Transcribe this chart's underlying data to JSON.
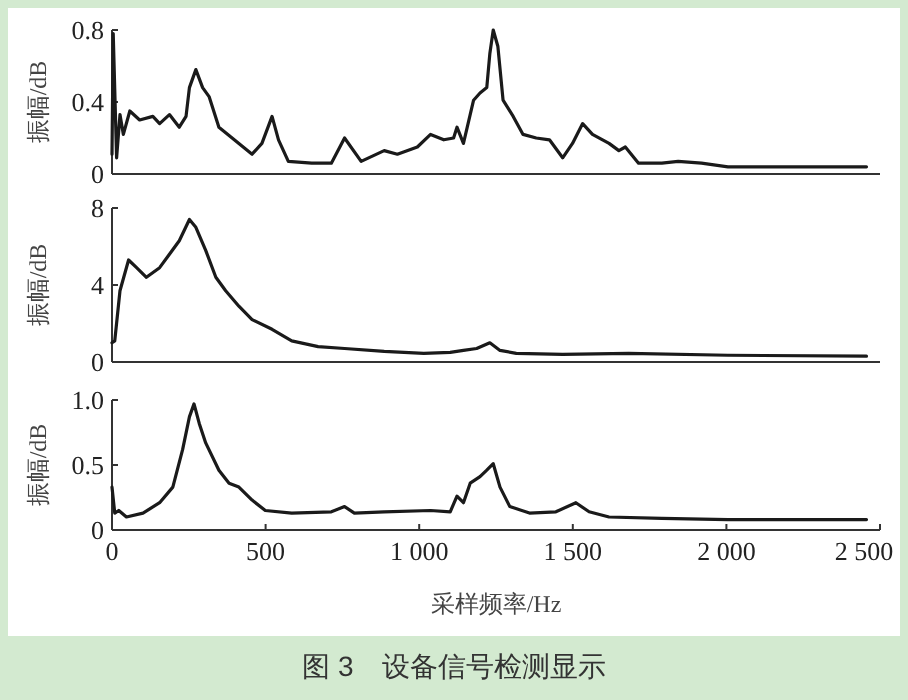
{
  "chart_data": [
    {
      "type": "line",
      "ylabel": "振幅/dB",
      "color": "#1a1a1a",
      "xlim": [
        0,
        2500
      ],
      "ylim": [
        0,
        0.8
      ],
      "yticks": [
        0,
        0.4,
        0.8
      ],
      "tick_labels": "y",
      "x": [
        0,
        4,
        15,
        26,
        37,
        58,
        90,
        133,
        155,
        187,
        219,
        241,
        252,
        273,
        295,
        316,
        348,
        391,
        456,
        488,
        521,
        542,
        574,
        650,
        714,
        757,
        811,
        886,
        929,
        994,
        1037,
        1080,
        1112,
        1123,
        1144,
        1177,
        1198,
        1220,
        1230,
        1241,
        1256,
        1273,
        1306,
        1338,
        1381,
        1424,
        1467,
        1499,
        1532,
        1564,
        1618,
        1650,
        1671,
        1714,
        1790,
        1843,
        1919,
        2005,
        2091,
        2456
      ],
      "values": [
        0.11,
        0.78,
        0.09,
        0.33,
        0.22,
        0.35,
        0.3,
        0.32,
        0.28,
        0.33,
        0.26,
        0.32,
        0.48,
        0.58,
        0.48,
        0.43,
        0.26,
        0.2,
        0.11,
        0.17,
        0.32,
        0.19,
        0.07,
        0.06,
        0.06,
        0.2,
        0.07,
        0.13,
        0.11,
        0.15,
        0.22,
        0.19,
        0.2,
        0.26,
        0.17,
        0.41,
        0.45,
        0.48,
        0.67,
        0.8,
        0.71,
        0.41,
        0.32,
        0.22,
        0.2,
        0.19,
        0.09,
        0.17,
        0.28,
        0.22,
        0.17,
        0.13,
        0.15,
        0.06,
        0.06,
        0.07,
        0.06,
        0.04,
        0.04,
        0.04
      ]
    },
    {
      "type": "line",
      "ylabel": "振幅/dB",
      "color": "#1a1a1a",
      "xlim": [
        0,
        2500
      ],
      "ylim": [
        0,
        8
      ],
      "yticks": [
        0,
        4,
        8
      ],
      "tick_labels": "y",
      "x": [
        0,
        9,
        26,
        54,
        80,
        112,
        155,
        187,
        219,
        252,
        273,
        305,
        338,
        370,
        413,
        456,
        521,
        585,
        671,
        757,
        886,
        1015,
        1101,
        1144,
        1187,
        1230,
        1263,
        1316,
        1467,
        1682,
        2005,
        2456
      ],
      "values": [
        1.0,
        1.1,
        3.7,
        5.3,
        4.9,
        4.4,
        4.9,
        5.6,
        6.3,
        7.4,
        7.0,
        5.8,
        4.4,
        3.7,
        2.9,
        2.2,
        1.7,
        1.1,
        0.8,
        0.7,
        0.55,
        0.45,
        0.5,
        0.6,
        0.7,
        1.0,
        0.6,
        0.45,
        0.4,
        0.45,
        0.35,
        0.3
      ]
    },
    {
      "type": "line",
      "ylabel": "振幅/dB",
      "xlabel": "采样频率/Hz",
      "color": "#1a1a1a",
      "xlim": [
        0,
        2500
      ],
      "ylim": [
        0,
        1
      ],
      "yticks": [
        0,
        0.5,
        {
          "value": 1,
          "label": "1.0"
        }
      ],
      "xticks": [
        0,
        500,
        {
          "value": 1000,
          "label": "1 000"
        },
        {
          "value": 1500,
          "label": "1 500"
        },
        {
          "value": 2000,
          "label": "2 000"
        },
        {
          "value": 2500,
          "label": "2 500"
        }
      ],
      "annotations": [
        "图 3　设备信号检测显示"
      ],
      "x": [
        0,
        9,
        22,
        47,
        101,
        155,
        198,
        230,
        252,
        267,
        284,
        305,
        348,
        381,
        413,
        456,
        499,
        585,
        714,
        757,
        789,
        886,
        1037,
        1101,
        1123,
        1144,
        1166,
        1198,
        1220,
        1241,
        1263,
        1295,
        1359,
        1445,
        1510,
        1553,
        1618,
        1790,
        2005,
        2456
      ],
      "values": [
        0.33,
        0.13,
        0.15,
        0.1,
        0.13,
        0.21,
        0.33,
        0.62,
        0.87,
        0.97,
        0.82,
        0.67,
        0.46,
        0.36,
        0.33,
        0.23,
        0.15,
        0.13,
        0.14,
        0.18,
        0.13,
        0.14,
        0.15,
        0.14,
        0.26,
        0.21,
        0.36,
        0.41,
        0.46,
        0.51,
        0.33,
        0.18,
        0.13,
        0.14,
        0.21,
        0.14,
        0.1,
        0.09,
        0.08,
        0.08
      ]
    }
  ]
}
